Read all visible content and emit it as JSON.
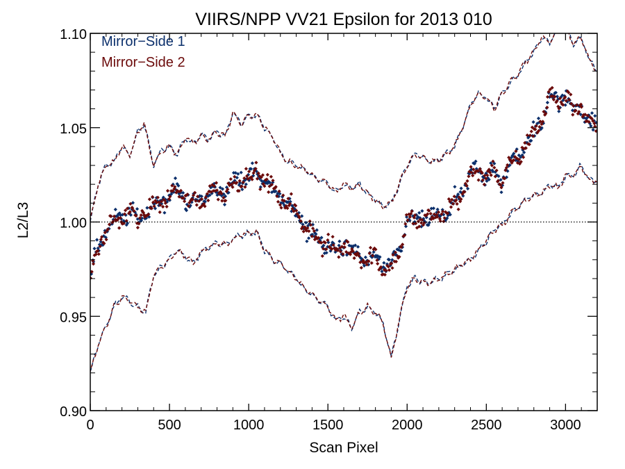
{
  "chart_data": {
    "type": "scatter",
    "title": "VIIRS/NPP VV21 Epsilon for 2013 010",
    "xlabel": "Scan Pixel",
    "ylabel": "L2/L3",
    "xlim": [
      0,
      3200
    ],
    "ylim": [
      0.9,
      1.1
    ],
    "x_ticks": [
      0,
      500,
      1000,
      1500,
      2000,
      2500,
      3000
    ],
    "x_tick_labels": [
      "0",
      "500",
      "1000",
      "1500",
      "2000",
      "2500",
      "3000"
    ],
    "y_ticks": [
      0.9,
      0.95,
      1.0,
      1.05,
      1.1
    ],
    "y_tick_labels": [
      "0.90",
      "0.95",
      "1.00",
      "1.05",
      "1.10"
    ],
    "reference_line": {
      "y": 1.0,
      "style": "dotted",
      "color": "#000000"
    },
    "legend_placement": "top-left",
    "grid": false,
    "series": [
      {
        "name": "Mirror−Side 1",
        "color": "#0b2f6b"
      },
      {
        "name": "Mirror−Side 2",
        "color": "#6b0a0a"
      }
    ],
    "mean_curve": {
      "x": [
        0,
        50,
        100,
        150,
        200,
        250,
        300,
        350,
        400,
        450,
        500,
        550,
        600,
        650,
        700,
        750,
        800,
        850,
        900,
        950,
        1000,
        1050,
        1100,
        1150,
        1200,
        1250,
        1300,
        1350,
        1400,
        1450,
        1500,
        1550,
        1600,
        1650,
        1700,
        1750,
        1800,
        1850,
        1900,
        1950,
        2000,
        2050,
        2100,
        2150,
        2200,
        2250,
        2300,
        2350,
        2400,
        2450,
        2500,
        2550,
        2600,
        2650,
        2700,
        2750,
        2800,
        2850,
        2900,
        2950,
        3000,
        3050,
        3100,
        3150,
        3200
      ],
      "y": [
        0.97,
        0.985,
        0.995,
        0.998,
        1.002,
        1.005,
        1.003,
        1.007,
        1.01,
        1.012,
        1.013,
        1.016,
        1.012,
        1.008,
        1.012,
        1.016,
        1.018,
        1.017,
        1.021,
        1.023,
        1.025,
        1.024,
        1.021,
        1.016,
        1.013,
        1.011,
        1.006,
        1.0,
        0.995,
        0.99,
        0.986,
        0.982,
        0.988,
        0.981,
        0.984,
        0.98,
        0.983,
        0.978,
        0.976,
        0.984,
        1.0,
        0.998,
        1.002,
        1.0,
        1.004,
        1.006,
        1.012,
        1.017,
        1.025,
        1.027,
        1.023,
        1.026,
        1.02,
        1.03,
        1.035,
        1.042,
        1.048,
        1.055,
        1.068,
        1.062,
        1.066,
        1.058,
        1.062,
        1.052,
        1.05
      ]
    },
    "upper_envelope": {
      "x": [
        0,
        50,
        100,
        150,
        200,
        250,
        300,
        340,
        400,
        450,
        500,
        550,
        600,
        650,
        700,
        750,
        800,
        850,
        900,
        950,
        1000,
        1050,
        1100,
        1150,
        1200,
        1250,
        1300,
        1350,
        1400,
        1450,
        1500,
        1550,
        1600,
        1650,
        1700,
        1750,
        1800,
        1850,
        1900,
        1950,
        2000,
        2050,
        2100,
        2150,
        2200,
        2250,
        2300,
        2350,
        2400,
        2450,
        2500,
        2550,
        2600,
        2650,
        2700,
        2750,
        2800,
        2850,
        2900,
        2950,
        3000,
        3050,
        3100,
        3150,
        3200
      ],
      "y": [
        1.0,
        1.02,
        1.03,
        1.032,
        1.04,
        1.035,
        1.048,
        1.052,
        1.03,
        1.038,
        1.04,
        1.036,
        1.045,
        1.042,
        1.046,
        1.044,
        1.048,
        1.045,
        1.058,
        1.052,
        1.056,
        1.057,
        1.05,
        1.045,
        1.036,
        1.032,
        1.03,
        1.028,
        1.025,
        1.022,
        1.02,
        1.016,
        1.02,
        1.018,
        1.02,
        1.015,
        1.012,
        1.008,
        1.01,
        1.02,
        1.03,
        1.036,
        1.034,
        1.032,
        1.033,
        1.036,
        1.04,
        1.05,
        1.062,
        1.068,
        1.066,
        1.06,
        1.068,
        1.074,
        1.078,
        1.085,
        1.09,
        1.098,
        1.095,
        1.102,
        1.104,
        1.094,
        1.098,
        1.086,
        1.08
      ]
    },
    "lower_envelope": {
      "x": [
        0,
        50,
        100,
        150,
        200,
        250,
        300,
        350,
        400,
        450,
        500,
        550,
        600,
        650,
        700,
        750,
        800,
        850,
        900,
        950,
        1000,
        1050,
        1100,
        1150,
        1200,
        1250,
        1300,
        1350,
        1400,
        1450,
        1500,
        1550,
        1600,
        1650,
        1700,
        1750,
        1800,
        1850,
        1900,
        1950,
        2000,
        2050,
        2100,
        2150,
        2200,
        2250,
        2300,
        2350,
        2400,
        2450,
        2500,
        2550,
        2600,
        2650,
        2700,
        2750,
        2800,
        2850,
        2900,
        2950,
        3000,
        3050,
        3100,
        3150,
        3200
      ],
      "y": [
        0.92,
        0.935,
        0.945,
        0.955,
        0.96,
        0.958,
        0.955,
        0.952,
        0.972,
        0.976,
        0.98,
        0.985,
        0.982,
        0.978,
        0.984,
        0.987,
        0.989,
        0.988,
        0.991,
        0.993,
        0.994,
        0.995,
        0.985,
        0.98,
        0.978,
        0.974,
        0.97,
        0.965,
        0.962,
        0.958,
        0.955,
        0.948,
        0.95,
        0.944,
        0.952,
        0.955,
        0.952,
        0.946,
        0.928,
        0.948,
        0.966,
        0.97,
        0.968,
        0.968,
        0.97,
        0.972,
        0.975,
        0.978,
        0.98,
        0.985,
        0.99,
        0.996,
        0.998,
        1.004,
        1.008,
        1.012,
        1.014,
        1.015,
        1.02,
        1.018,
        1.024,
        1.025,
        1.03,
        1.022,
        1.022
      ]
    }
  }
}
